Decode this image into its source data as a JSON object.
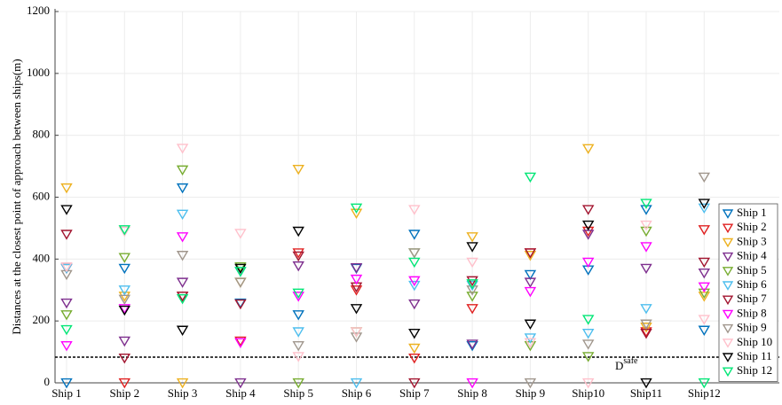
{
  "chart_data": {
    "type": "scatter",
    "ylabel": "Distances at the closest point of approach between ships(m)",
    "categories": [
      "Ship 1",
      "Ship 2",
      "Ship 3",
      "Ship 4",
      "Ship 5",
      "Ship 6",
      "Ship 7",
      "Ship 8",
      "Ship 9",
      "Ship10",
      "Ship11",
      "Ship12"
    ],
    "series": [
      {
        "name": "Ship 1",
        "color": "#0072BD",
        "values": [
          0,
          370,
          630,
          258,
          220,
          370,
          480,
          120,
          350,
          365,
          560,
          170
        ]
      },
      {
        "name": "Ship 2",
        "color": "#E02020",
        "values": [
          370,
          0,
          280,
          135,
          420,
          300,
          80,
          240,
          420,
          490,
          165,
          495
        ]
      },
      {
        "name": "Ship 3",
        "color": "#EDB120",
        "values": [
          630,
          280,
          0,
          325,
          690,
          548,
          112,
          472,
          412,
          757,
          180,
          280
        ]
      },
      {
        "name": "Ship 4",
        "color": "#7E2F8E",
        "values": [
          258,
          135,
          325,
          0,
          378,
          372,
          255,
          125,
          325,
          480,
          370,
          355
        ]
      },
      {
        "name": "Ship 5",
        "color": "#77AC30",
        "values": [
          220,
          405,
          688,
          375,
          0,
          165,
          420,
          280,
          120,
          85,
          490,
          290
        ]
      },
      {
        "name": "Ship 6",
        "color": "#4DBEEE",
        "values": [
          370,
          300,
          545,
          360,
          165,
          0,
          315,
          315,
          145,
          160,
          240,
          565
        ]
      },
      {
        "name": "Ship 7",
        "color": "#A2142F",
        "values": [
          480,
          80,
          280,
          255,
          410,
          310,
          0,
          330,
          420,
          560,
          160,
          390
        ]
      },
      {
        "name": "Ship 8",
        "color": "#FF00FF",
        "values": [
          120,
          240,
          472,
          130,
          280,
          335,
          330,
          0,
          295,
          390,
          440,
          310
        ]
      },
      {
        "name": "Ship 9",
        "color": "#A0968C",
        "values": [
          350,
          270,
          412,
          325,
          120,
          148,
          420,
          300,
          0,
          125,
          190,
          665
        ]
      },
      {
        "name": "Ship 10",
        "color": "#FFC0CB",
        "values": [
          375,
          490,
          758,
          483,
          85,
          165,
          560,
          390,
          130,
          0,
          510,
          205
        ]
      },
      {
        "name": "Ship 11",
        "color": "#000000",
        "values": [
          560,
          235,
          170,
          370,
          490,
          240,
          160,
          440,
          190,
          510,
          0,
          580
        ]
      },
      {
        "name": "Ship 12",
        "color": "#00E676",
        "values": [
          172,
          495,
          272,
          360,
          290,
          565,
          390,
          320,
          665,
          205,
          580,
          0
        ]
      }
    ],
    "ylim": [
      0,
      1200
    ],
    "yticks": [
      0,
      200,
      400,
      600,
      800,
      1000,
      1200
    ],
    "grid": true,
    "threshold": {
      "value": 83,
      "label": "D",
      "superscript": "safe"
    }
  }
}
